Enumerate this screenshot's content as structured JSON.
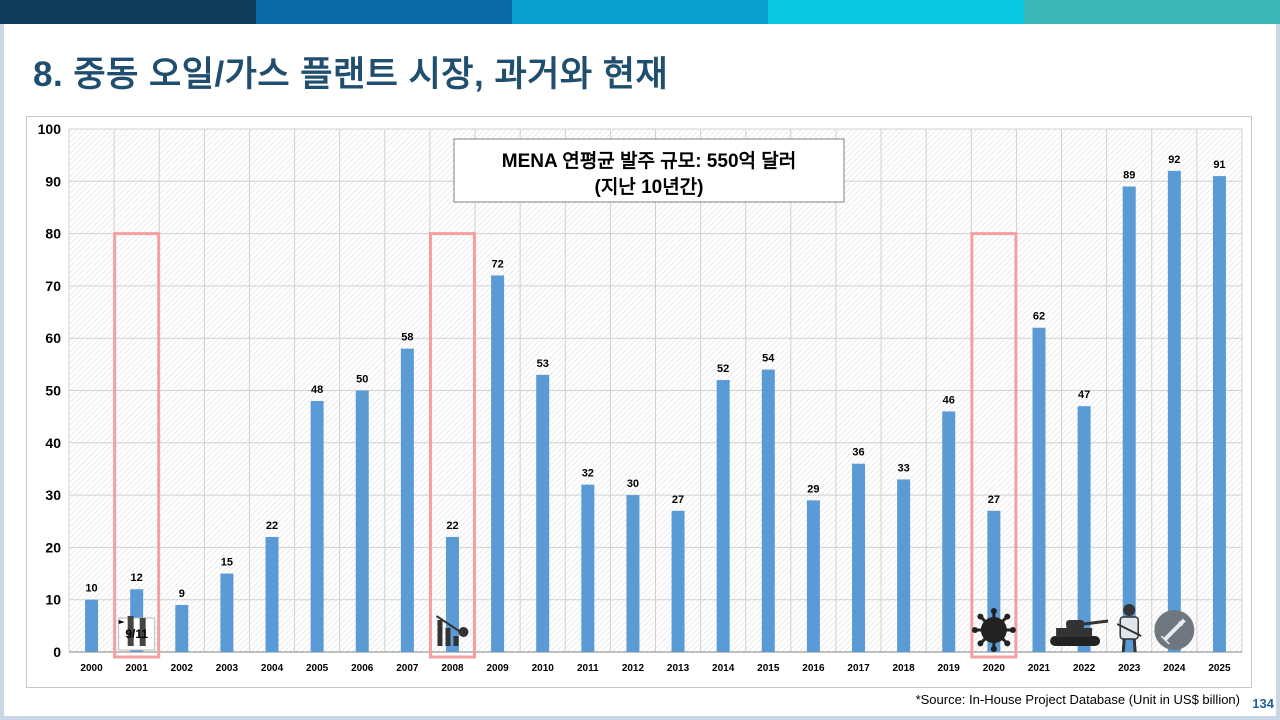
{
  "slide": {
    "title": "8. 중동 오일/가스 플랜트 시장, 과거와 현재",
    "source": "*Source: In-House Project Database (Unit in US$ billion)",
    "page_number": "134",
    "top_bar_colors": [
      "#0e3d5e",
      "#0a6aa6",
      "#0aa0d0",
      "#08c8e0",
      "#3ab5b8"
    ]
  },
  "chart_data": {
    "type": "bar",
    "title": "",
    "xlabel": "",
    "ylabel": "",
    "ylim": [
      0,
      100
    ],
    "yticks": [
      0,
      10,
      20,
      30,
      40,
      50,
      60,
      70,
      80,
      90,
      100
    ],
    "categories": [
      "2000",
      "2001",
      "2002",
      "2003",
      "2004",
      "2005",
      "2006",
      "2007",
      "2008",
      "2009",
      "2010",
      "2011",
      "2012",
      "2013",
      "2014",
      "2015",
      "2016",
      "2017",
      "2018",
      "2019",
      "2020",
      "2021",
      "2022",
      "2023",
      "2024",
      "2025"
    ],
    "values": [
      10,
      12,
      9,
      15,
      22,
      48,
      50,
      58,
      22,
      72,
      53,
      32,
      30,
      27,
      52,
      54,
      29,
      36,
      33,
      46,
      27,
      62,
      47,
      89,
      92,
      91
    ],
    "bar_color": "#5b9bd5",
    "grid": true,
    "annotation_box": {
      "line1": "MENA 연평균 발주 규모: 550억 달러",
      "line2": "(지난 10년간)"
    },
    "highlight_color": "#f4a0a0",
    "highlights": [
      {
        "year": "2001",
        "icon": "twin-towers-icon",
        "label": "9/11"
      },
      {
        "year": "2008",
        "icon": "financial-crisis-icon",
        "label": ""
      },
      {
        "year": "2020",
        "icon": "virus-icon",
        "label": ""
      }
    ],
    "extra_icons": [
      {
        "year": "2022",
        "icon": "tank-icon"
      },
      {
        "year": "2023",
        "icon": "soldier-icon"
      },
      {
        "year": "2024",
        "icon": "missile-icon"
      }
    ]
  }
}
